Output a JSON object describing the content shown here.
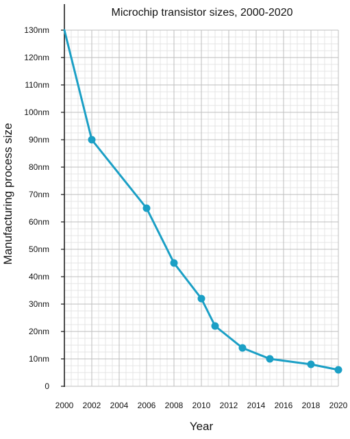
{
  "chart_data": {
    "type": "line",
    "title": "Microchip transistor sizes, 2000-2020",
    "xlabel": "Year",
    "ylabel": "Manufacturing process size",
    "xlim": [
      2000,
      2020
    ],
    "ylim": [
      0,
      130
    ],
    "x_ticks": [
      2000,
      2002,
      2004,
      2006,
      2008,
      2010,
      2012,
      2014,
      2016,
      2018,
      2020
    ],
    "y_ticks": [
      0,
      10,
      20,
      30,
      40,
      50,
      60,
      70,
      80,
      90,
      100,
      110,
      120,
      130
    ],
    "y_tick_labels": [
      "0",
      "10nm",
      "20nm",
      "30nm",
      "40nm",
      "50nm",
      "60nm",
      "70nm",
      "80nm",
      "90nm",
      "100nm",
      "110nm",
      "120nm",
      "130nm"
    ],
    "grid": true,
    "series": [
      {
        "color": "#1a9fc5",
        "points": [
          {
            "x": 2000,
            "y": 130,
            "marker": false
          },
          {
            "x": 2002,
            "y": 90,
            "marker": true
          },
          {
            "x": 2006,
            "y": 65,
            "marker": true
          },
          {
            "x": 2008,
            "y": 45,
            "marker": true
          },
          {
            "x": 2010,
            "y": 32,
            "marker": true
          },
          {
            "x": 2011,
            "y": 22,
            "marker": true
          },
          {
            "x": 2013,
            "y": 14,
            "marker": true
          },
          {
            "x": 2015,
            "y": 10,
            "marker": true
          },
          {
            "x": 2018,
            "y": 8,
            "marker": true
          },
          {
            "x": 2020,
            "y": 6,
            "marker": true
          }
        ]
      }
    ]
  }
}
